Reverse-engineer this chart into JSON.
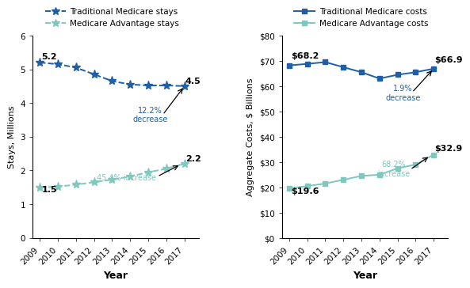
{
  "years": [
    2009,
    2010,
    2011,
    2012,
    2013,
    2014,
    2015,
    2016,
    2017
  ],
  "trad_stays": [
    5.2,
    5.15,
    5.05,
    4.85,
    4.65,
    4.55,
    4.52,
    4.52,
    4.5
  ],
  "ma_stays": [
    1.5,
    1.52,
    1.58,
    1.65,
    1.73,
    1.82,
    1.95,
    2.05,
    2.2
  ],
  "trad_costs": [
    68.2,
    68.8,
    69.5,
    67.5,
    65.5,
    63.0,
    64.5,
    65.5,
    66.9
  ],
  "ma_costs": [
    19.6,
    20.5,
    21.5,
    23.0,
    24.5,
    25.0,
    27.5,
    29.0,
    32.9
  ],
  "trad_color": "#1F5FA6",
  "ma_color": "#7EC8C0",
  "legend_trad_stays": "Traditional Medicare stays",
  "legend_ma_stays": "Medicare Advantage stays",
  "legend_trad_costs": "Traditional Medicare costs",
  "legend_ma_costs": "Medicare Advantage costs",
  "ylabel_left": "Stays, Millions",
  "ylabel_right": "Aggregate Costs, $ Billions",
  "xlabel": "Year",
  "ylim_left": [
    0,
    6
  ],
  "ylim_right": [
    0,
    80
  ],
  "yticks_left": [
    0,
    1,
    2,
    3,
    4,
    5,
    6
  ],
  "yticks_right": [
    0,
    10,
    20,
    30,
    40,
    50,
    60,
    70,
    80
  ],
  "ytick_labels_right": [
    "$0",
    "$10",
    "$20",
    "$30",
    "$40",
    "$50",
    "$60",
    "$70",
    "$80"
  ]
}
